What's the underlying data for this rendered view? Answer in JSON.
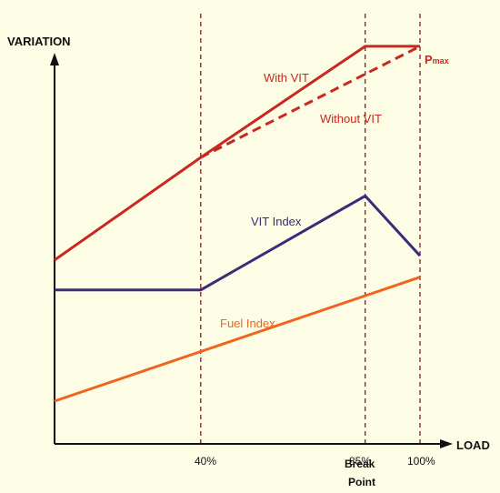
{
  "chart_data": {
    "type": "line",
    "ylabel": "VARIATION",
    "xlabel": "LOAD",
    "xlim": [
      0,
      100
    ],
    "ylim": [
      0,
      100
    ],
    "grid": false,
    "x_ticks": [
      {
        "x": 40,
        "label": "40%"
      },
      {
        "x": 85,
        "label": "85%"
      },
      {
        "x": 100,
        "label": "100%"
      }
    ],
    "break_point_label": [
      "Break",
      "Point"
    ],
    "series": [
      {
        "name": "With VIT",
        "color": "#c8281e",
        "dash": false,
        "points": [
          [
            0,
            43
          ],
          [
            40,
            67
          ],
          [
            85,
            93
          ],
          [
            100,
            93
          ]
        ]
      },
      {
        "name": "Without VIT",
        "color": "#c8281e",
        "dash": true,
        "points": [
          [
            40,
            67
          ],
          [
            100,
            93
          ]
        ]
      },
      {
        "name": "VIT Index",
        "color": "#3c2a7a",
        "dash": false,
        "points": [
          [
            0,
            36
          ],
          [
            40,
            36
          ],
          [
            85,
            58
          ],
          [
            100,
            44
          ]
        ]
      },
      {
        "name": "Fuel Index",
        "color": "#f0641e",
        "dash": false,
        "points": [
          [
            0,
            10
          ],
          [
            100,
            39
          ]
        ]
      }
    ],
    "annotations": {
      "pmax": {
        "main": "P",
        "sub": "max"
      }
    },
    "reference_lines_x": [
      40,
      85,
      100
    ],
    "colors": {
      "axis": "#111111",
      "reference": "#7a1e1e",
      "background": "#fdfde6"
    }
  }
}
